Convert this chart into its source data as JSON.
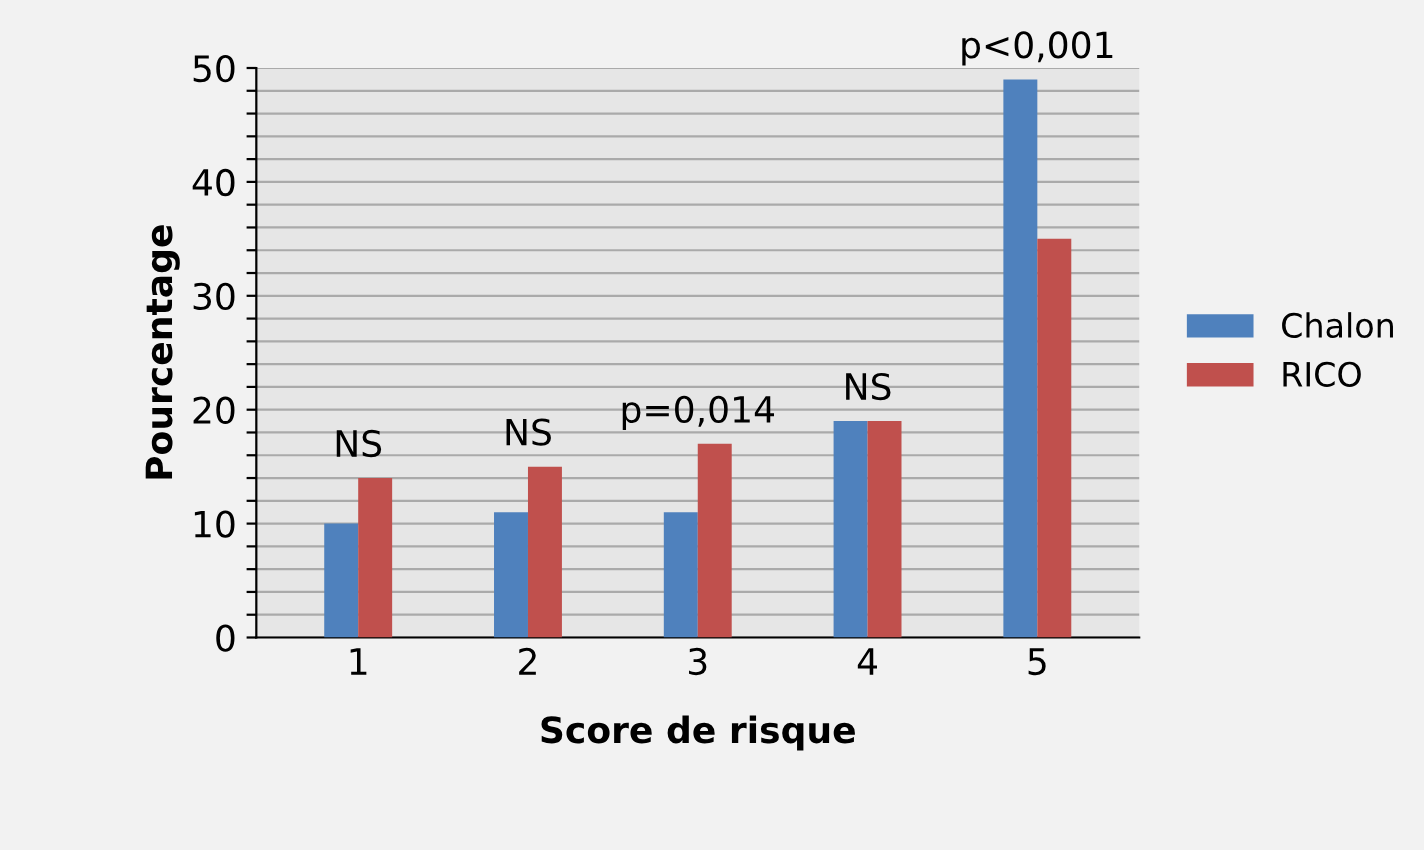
{
  "chart_data": {
    "type": "bar",
    "xlabel": "Score de risque",
    "ylabel": "Pourcentage",
    "categories": [
      "1",
      "2",
      "3",
      "4",
      "5"
    ],
    "series": [
      {
        "name": "Chalon",
        "color": "#4f81bd",
        "values": [
          10,
          11,
          11,
          19,
          49
        ]
      },
      {
        "name": "RICO",
        "color": "#c0504d",
        "values": [
          14,
          15,
          17,
          19,
          35
        ]
      }
    ],
    "ylim": [
      0,
      50
    ],
    "yticks": [
      0,
      {
        "value": 2,
        "label": null
      },
      {
        "value": 4,
        "label": null
      },
      {
        "value": 6,
        "label": null
      },
      {
        "value": 8,
        "label": null
      },
      10,
      {
        "value": 12,
        "label": null
      },
      {
        "value": 14,
        "label": null
      },
      {
        "value": 16,
        "label": null
      },
      {
        "value": 18,
        "label": null
      },
      20,
      {
        "value": 22,
        "label": null
      },
      {
        "value": 24,
        "label": null
      },
      {
        "value": 26,
        "label": null
      },
      {
        "value": 28,
        "label": null
      },
      30,
      {
        "value": 32,
        "label": null
      },
      {
        "value": 34,
        "label": null
      },
      {
        "value": 36,
        "label": null
      },
      {
        "value": 38,
        "label": null
      },
      40,
      {
        "value": 42,
        "label": null
      },
      {
        "value": 44,
        "label": null
      },
      {
        "value": 46,
        "label": null
      },
      {
        "value": 48,
        "label": null
      },
      50
    ],
    "grid": "y",
    "legend": "right",
    "annotations": [
      {
        "text": "NS",
        "x": "1",
        "y": 14
      },
      {
        "text": "NS",
        "x": "2",
        "y": 15
      },
      {
        "text": "p=0,014",
        "x": "3",
        "y": 17
      },
      {
        "text": "NS",
        "x": "4",
        "y": 19
      },
      {
        "text": "p<0,001",
        "x": "5",
        "y": 49
      }
    ]
  }
}
